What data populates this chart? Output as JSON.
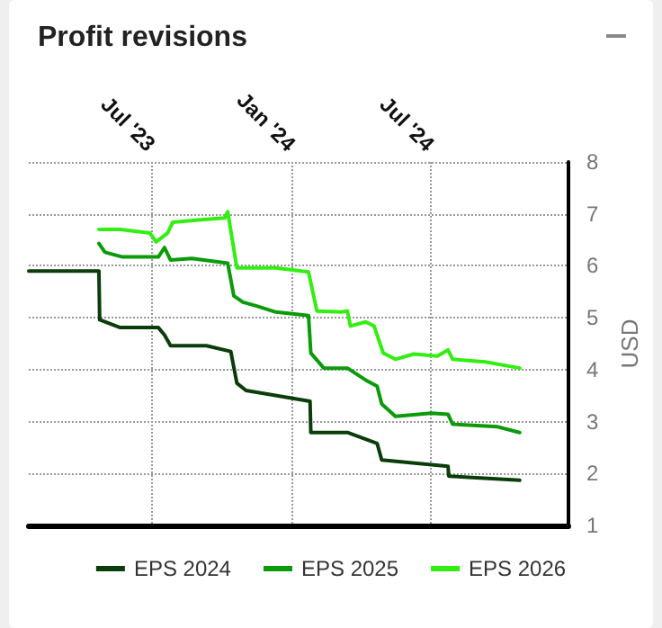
{
  "chart_data": {
    "type": "line",
    "title": "Profit revisions",
    "ylabel": "USD",
    "xlim": [
      "2023-01-21",
      "2024-12-29"
    ],
    "xticks": [
      {
        "value": "2023-07-01",
        "label": "Jul '23"
      },
      {
        "value": "2024-01-01",
        "label": "Jan '24"
      },
      {
        "value": "2024-07-01",
        "label": "Jul '24"
      }
    ],
    "ylim": [
      1,
      8
    ],
    "yticks": [
      1,
      2,
      3,
      4,
      5,
      6,
      7,
      8
    ],
    "grid": true,
    "legend": "bottom",
    "marker": "none",
    "line_style": "solid",
    "series": [
      {
        "name": "EPS 2024",
        "color": "#0b3d0b",
        "x": [
          "2023-01-21",
          "2023-04-23",
          "2023-04-24",
          "2023-05-21",
          "2023-07-10",
          "2023-07-18",
          "2023-07-26",
          "2023-09-11",
          "2023-10-13",
          "2023-10-21",
          "2023-11-02",
          "2024-01-25",
          "2024-01-26",
          "2024-02-12",
          "2024-03-14",
          "2024-04-22",
          "2024-04-28",
          "2024-07-24",
          "2024-07-25",
          "2024-10-26"
        ],
        "values": [
          5.9,
          5.9,
          4.96,
          4.81,
          4.81,
          4.67,
          4.46,
          4.46,
          4.35,
          3.74,
          3.6,
          3.39,
          2.79,
          2.79,
          2.79,
          2.58,
          2.26,
          2.14,
          1.95,
          1.87
        ]
      },
      {
        "name": "EPS 2025",
        "color": "#0a9a0a",
        "x": [
          "2023-04-23",
          "2023-05-01",
          "2023-05-24",
          "2023-07-10",
          "2023-07-18",
          "2023-07-26",
          "2023-08-23",
          "2023-10-09",
          "2023-10-17",
          "2023-10-29",
          "2023-11-17",
          "2023-12-11",
          "2024-01-23",
          "2024-01-26",
          "2024-02-12",
          "2024-03-14",
          "2024-04-07",
          "2024-04-22",
          "2024-04-28",
          "2024-05-16",
          "2024-07-02",
          "2024-07-24",
          "2024-07-30",
          "2024-09-27",
          "2024-10-26"
        ],
        "values": [
          6.43,
          6.26,
          6.17,
          6.17,
          6.35,
          6.11,
          6.14,
          6.05,
          5.42,
          5.3,
          5.22,
          5.11,
          5.04,
          4.32,
          4.03,
          4.03,
          3.8,
          3.68,
          3.34,
          3.1,
          3.16,
          3.14,
          2.95,
          2.9,
          2.79
        ]
      },
      {
        "name": "EPS 2026",
        "color": "#33ee11",
        "x": [
          "2023-04-23",
          "2023-05-21",
          "2023-06-29",
          "2023-07-07",
          "2023-07-22",
          "2023-07-29",
          "2023-09-07",
          "2023-10-05",
          "2023-10-09",
          "2023-10-21",
          "2023-12-11",
          "2024-01-23",
          "2024-02-03",
          "2024-03-06",
          "2024-03-14",
          "2024-03-18",
          "2024-04-07",
          "2024-04-18",
          "2024-04-30",
          "2024-05-16",
          "2024-06-09",
          "2024-07-10",
          "2024-07-24",
          "2024-07-30",
          "2024-09-11",
          "2024-10-26"
        ],
        "values": [
          6.7,
          6.7,
          6.63,
          6.46,
          6.63,
          6.84,
          6.89,
          6.92,
          7.04,
          5.96,
          5.96,
          5.88,
          5.13,
          5.11,
          5.13,
          4.84,
          4.92,
          4.84,
          4.32,
          4.2,
          4.3,
          4.26,
          4.38,
          4.2,
          4.15,
          4.03
        ]
      }
    ]
  }
}
